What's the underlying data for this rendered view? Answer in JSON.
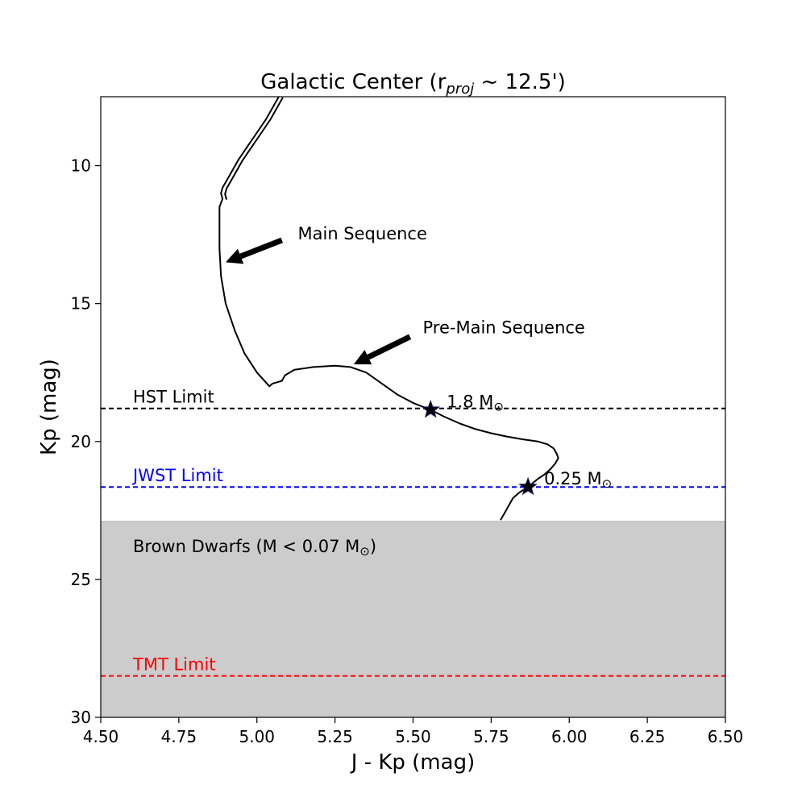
{
  "chart_data": {
    "type": "line",
    "title": {
      "prefix": "Galactic Center (r",
      "sub": "proj",
      "suffix": " ~  12.5')"
    },
    "xlabel": "J - Kp (mag)",
    "ylabel": "Kp (mag)",
    "xlim": [
      4.5,
      6.5
    ],
    "ylim": [
      7.5,
      30
    ],
    "y_inverted": true,
    "x_ticks": [
      "4.50",
      "4.75",
      "5.00",
      "5.25",
      "5.50",
      "5.75",
      "6.00",
      "6.25",
      "6.50"
    ],
    "y_ticks": [
      "10",
      "15",
      "20",
      "25",
      "30"
    ],
    "grid": false,
    "isochrone": {
      "x": [
        5.07,
        5.05,
        5.03,
        5.0,
        4.97,
        4.94,
        4.92,
        4.9,
        4.89,
        4.885,
        4.89,
        4.88,
        4.88,
        4.88,
        4.885,
        4.9,
        4.93,
        4.96,
        5.0,
        5.04,
        5.05,
        5.08,
        5.09,
        5.12,
        5.18,
        5.25,
        5.3,
        5.35,
        5.4,
        5.45,
        5.5,
        5.556,
        5.6,
        5.65,
        5.7,
        5.75,
        5.8,
        5.85,
        5.9,
        5.93,
        5.95,
        5.96,
        5.965,
        5.955,
        5.94,
        5.92,
        5.9,
        5.868,
        5.84,
        5.82,
        5.81,
        5.8,
        5.79,
        5.78
      ],
      "y": [
        7.5,
        7.9,
        8.3,
        8.8,
        9.3,
        9.8,
        10.2,
        10.6,
        10.8,
        11.0,
        11.2,
        11.5,
        12.0,
        13.0,
        14.0,
        15.0,
        16.0,
        16.8,
        17.5,
        18.0,
        17.9,
        17.8,
        17.6,
        17.4,
        17.3,
        17.25,
        17.3,
        17.5,
        17.9,
        18.3,
        18.6,
        18.85,
        19.1,
        19.35,
        19.55,
        19.7,
        19.82,
        19.92,
        20.0,
        20.1,
        20.25,
        20.45,
        20.6,
        20.8,
        21.0,
        21.2,
        21.35,
        21.65,
        21.85,
        22.05,
        22.25,
        22.45,
        22.65,
        22.85
      ]
    },
    "brown_dwarf_region": {
      "label_prefix": "Brown Dwarfs (M < 0.07 M",
      "label_sun": "⊙",
      "label_suffix": ")",
      "y_range": [
        22.9,
        30
      ],
      "color": "#cccccc"
    },
    "limits": [
      {
        "label": "HST Limit",
        "y": 18.8,
        "color": "#000000"
      },
      {
        "label": "JWST Limit",
        "y": 21.65,
        "color": "#0000ff"
      },
      {
        "label": "TMT Limit",
        "y": 28.5,
        "color": "#ff0000"
      }
    ],
    "mass_markers": [
      {
        "x": 5.556,
        "y": 18.85,
        "label": "1.8 M",
        "sun": "⊙"
      },
      {
        "x": 5.868,
        "y": 21.65,
        "label": "0.25 M",
        "sun": "⊙"
      }
    ],
    "arrows": [
      {
        "label": "Main Sequence",
        "text_x": 5.1,
        "text_y": 12.5,
        "from": [
          5.08,
          12.7
        ],
        "to": [
          4.9,
          13.5
        ]
      },
      {
        "label": "Pre-Main Sequence",
        "text_x": 5.5,
        "text_y": 15.9,
        "from": [
          5.49,
          16.2
        ],
        "to": [
          5.31,
          17.2
        ]
      }
    ]
  }
}
